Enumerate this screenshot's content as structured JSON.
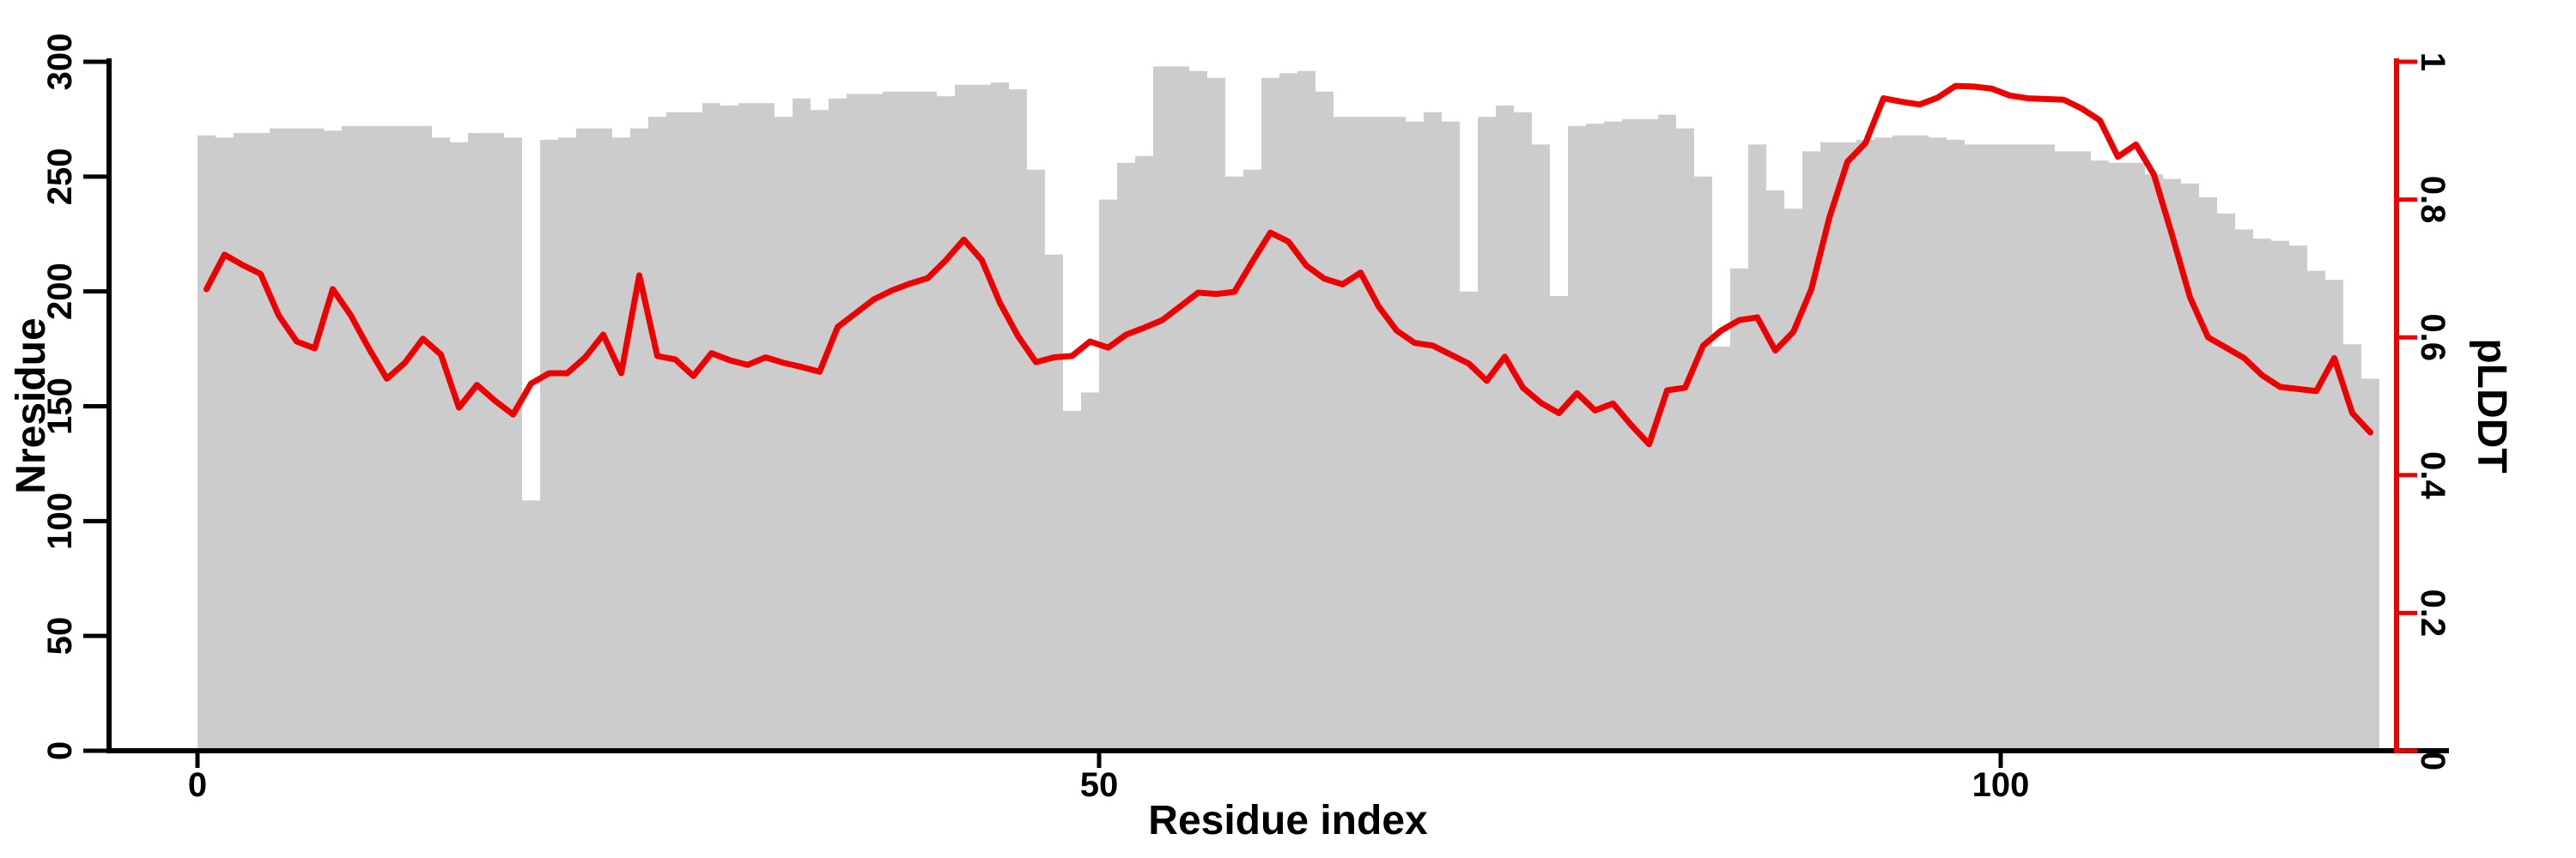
{
  "labels": {
    "xlabel": "Residue index",
    "ylabel_left": "Nresidue",
    "ylabel_right": "pLDDT"
  },
  "colors": {
    "bar_fill": "#cccccc",
    "line_red": "#ee0000",
    "axis_black": "#000000",
    "background": "#ffffff"
  },
  "chart_data": {
    "type": "bar",
    "subtype": "dual-axis bar+line",
    "xlabel": "Residue index",
    "ylabel_left": "Nresidue",
    "ylabel_right": "pLDDT",
    "xlim": [
      0,
      121
    ],
    "ylim_left": [
      0,
      300
    ],
    "ylim_right": [
      0,
      1
    ],
    "grid": false,
    "x_ticks": [
      {
        "label": "0",
        "value": 0
      },
      {
        "label": "50",
        "value": 50
      },
      {
        "label": "100",
        "value": 100
      }
    ],
    "y_ticks_left": [
      {
        "label": "0",
        "value": 0
      },
      {
        "label": "50",
        "value": 50
      },
      {
        "label": "100",
        "value": 100
      },
      {
        "label": "150",
        "value": 150
      },
      {
        "label": "200",
        "value": 200
      },
      {
        "label": "250",
        "value": 250
      },
      {
        "label": "300",
        "value": 300
      }
    ],
    "y_ticks_right": [
      {
        "label": "0",
        "value": 0
      },
      {
        "label": "0.2",
        "value": 0.2
      },
      {
        "label": "0.4",
        "value": 0.4
      },
      {
        "label": "0.6",
        "value": 0.6
      },
      {
        "label": "0.8",
        "value": 0.8
      },
      {
        "label": "1",
        "value": 1
      }
    ],
    "x_is_residue_index_starting_at": 0,
    "series": [
      {
        "name": "Nresidue",
        "render": "bar",
        "axis": "left",
        "color": "#cccccc",
        "values": [
          268,
          267,
          269,
          269,
          271,
          271,
          271,
          270,
          272,
          272,
          272,
          272,
          272,
          267,
          265,
          269,
          269,
          267,
          109,
          266,
          267,
          271,
          271,
          267,
          271,
          276,
          278,
          278,
          282,
          281,
          282,
          282,
          276,
          284,
          279,
          284,
          286,
          286,
          287,
          287,
          287,
          285,
          290,
          290,
          291,
          288,
          253,
          216,
          148,
          156,
          240,
          256,
          259,
          298,
          298,
          296,
          293,
          250,
          253,
          293,
          295,
          296,
          287,
          276,
          276,
          276,
          276,
          274,
          278,
          274,
          200,
          276,
          281,
          278,
          264,
          198,
          272,
          273,
          274,
          275,
          275,
          277,
          271,
          250,
          176,
          210,
          264,
          244,
          236,
          261,
          265,
          265,
          266,
          267,
          268,
          268,
          267,
          266,
          264,
          264,
          264,
          264,
          264,
          261,
          261,
          257,
          256,
          256,
          251,
          249,
          247,
          241,
          234,
          227,
          223,
          222,
          220,
          209,
          205,
          177,
          162
        ]
      },
      {
        "name": "pLDDT",
        "render": "line",
        "axis": "right",
        "color": "#ee0000",
        "values": [
          0.67,
          0.72,
          0.705,
          0.692,
          0.632,
          0.594,
          0.584,
          0.67,
          0.632,
          0.584,
          0.54,
          0.563,
          0.598,
          0.575,
          0.498,
          0.531,
          0.508,
          0.488,
          0.533,
          0.548,
          0.548,
          0.571,
          0.604,
          0.548,
          0.69,
          0.573,
          0.568,
          0.544,
          0.577,
          0.567,
          0.56,
          0.571,
          0.563,
          0.557,
          0.55,
          0.615,
          0.635,
          0.655,
          0.668,
          0.678,
          0.686,
          0.712,
          0.742,
          0.712,
          0.65,
          0.602,
          0.564,
          0.571,
          0.573,
          0.594,
          0.585,
          0.604,
          0.614,
          0.625,
          0.645,
          0.665,
          0.663,
          0.666,
          0.71,
          0.752,
          0.739,
          0.704,
          0.685,
          0.677,
          0.694,
          0.645,
          0.61,
          0.592,
          0.588,
          0.575,
          0.562,
          0.537,
          0.572,
          0.527,
          0.505,
          0.49,
          0.519,
          0.494,
          0.504,
          0.473,
          0.445,
          0.523,
          0.527,
          0.588,
          0.61,
          0.625,
          0.629,
          0.581,
          0.608,
          0.67,
          0.774,
          0.855,
          0.882,
          0.947,
          0.942,
          0.938,
          0.948,
          0.965,
          0.964,
          0.961,
          0.951,
          0.947,
          0.946,
          0.945,
          0.932,
          0.915,
          0.862,
          0.88,
          0.836,
          0.749,
          0.658,
          0.6,
          0.585,
          0.57,
          0.545,
          0.528,
          0.525,
          0.522,
          0.57,
          0.49,
          0.462
        ]
      }
    ]
  }
}
